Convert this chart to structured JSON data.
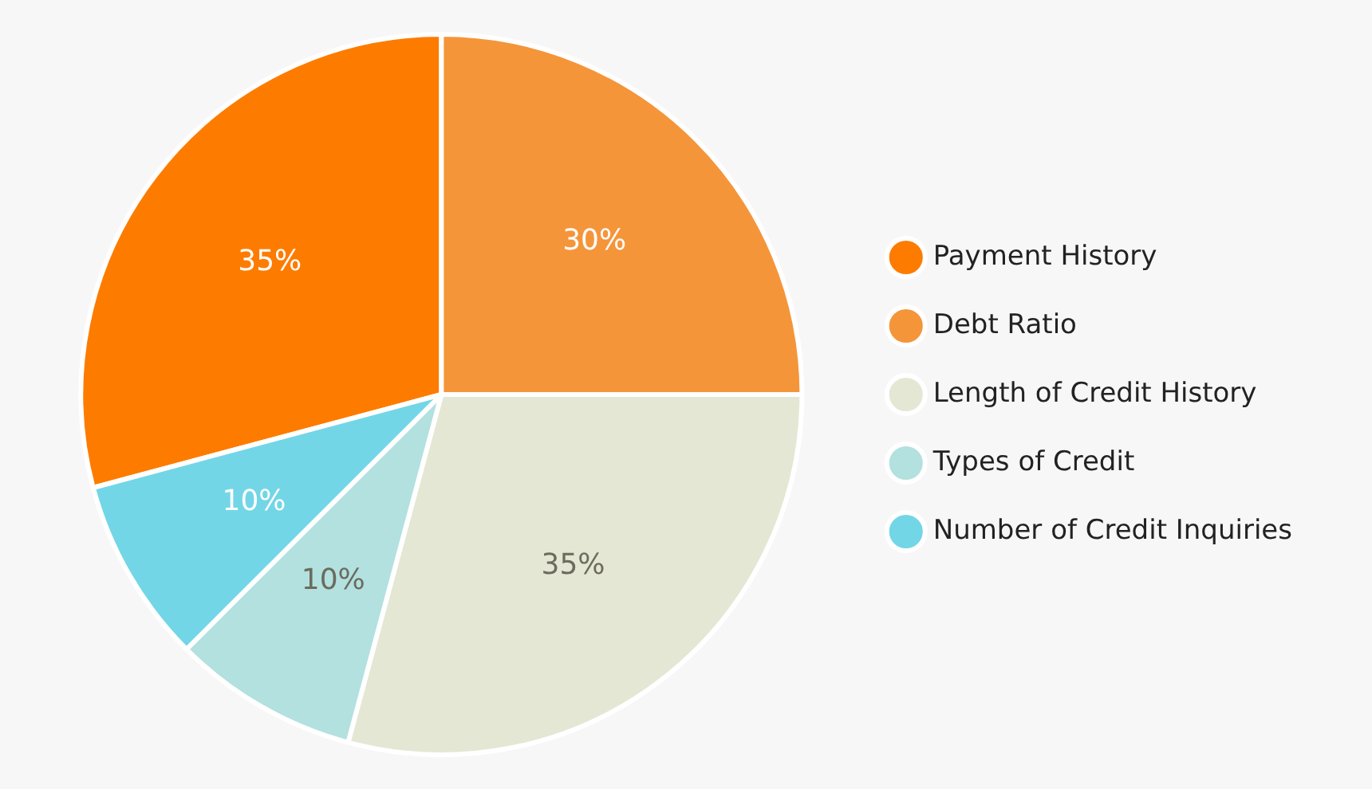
{
  "chart_data": {
    "type": "pie",
    "categories": [
      "Payment History",
      "Debt Ratio",
      "Length of Credit History",
      "Types of Credit",
      "Number of Credit Inquiries"
    ],
    "values": [
      35,
      30,
      35,
      10,
      10
    ],
    "value_labels": [
      "35%",
      "30%",
      "35%",
      "10%",
      "10%"
    ],
    "colors": [
      "#fd7c00",
      "#f5953a",
      "#e5e7d5",
      "#b2e1df",
      "#72d6e6"
    ],
    "legend": "right"
  }
}
